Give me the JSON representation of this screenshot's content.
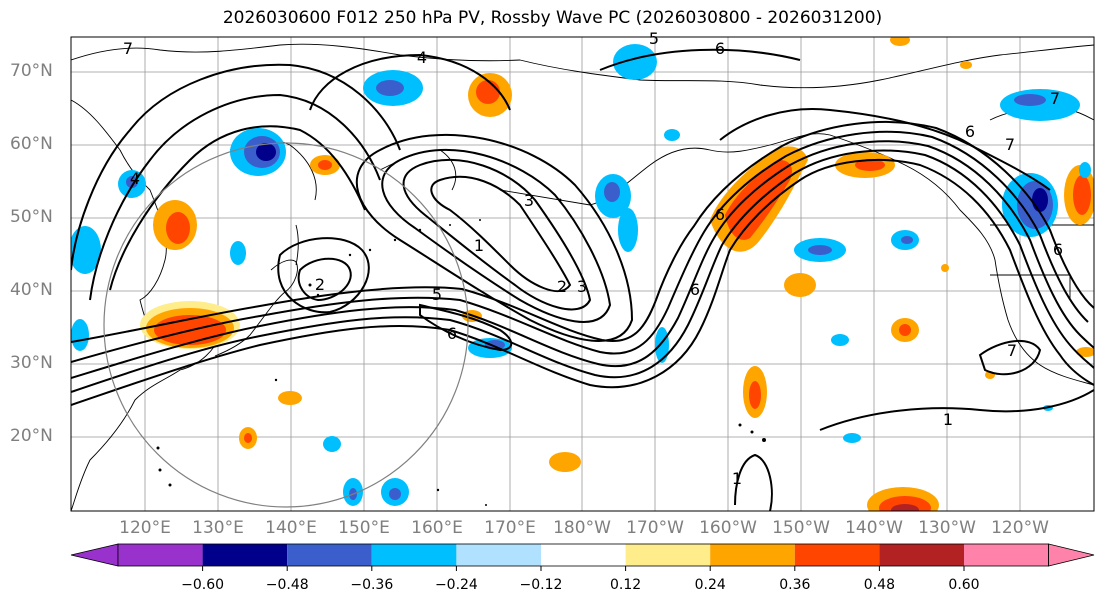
{
  "title": "2026030600 F012 250 hPa PV, Rossby Wave PC (2026030800 - 2026031200)",
  "lat_labels": [
    "70°N",
    "60°N",
    "50°N",
    "40°N",
    "30°N",
    "20°N"
  ],
  "lon_labels": [
    "120°E",
    "130°E",
    "140°E",
    "150°E",
    "160°E",
    "170°E",
    "180°W",
    "170°W",
    "160°W",
    "150°W",
    "140°W",
    "130°W",
    "120°W"
  ],
  "colorbar": {
    "ticks": [
      "−0.60",
      "−0.48",
      "−0.36",
      "−0.24",
      "−0.12",
      "0.12",
      "0.24",
      "0.36",
      "0.48",
      "0.60"
    ],
    "colors": [
      "#9932cc",
      "#00008b",
      "#3a5fcd",
      "#00bfff",
      "#b0e2ff",
      "#ffffff",
      "#ffec8b",
      "#ffa500",
      "#ff4500",
      "#b22222",
      "#ff82ab"
    ]
  },
  "contour_labels": [
    "1",
    "2",
    "3",
    "4",
    "5",
    "6",
    "7"
  ]
}
